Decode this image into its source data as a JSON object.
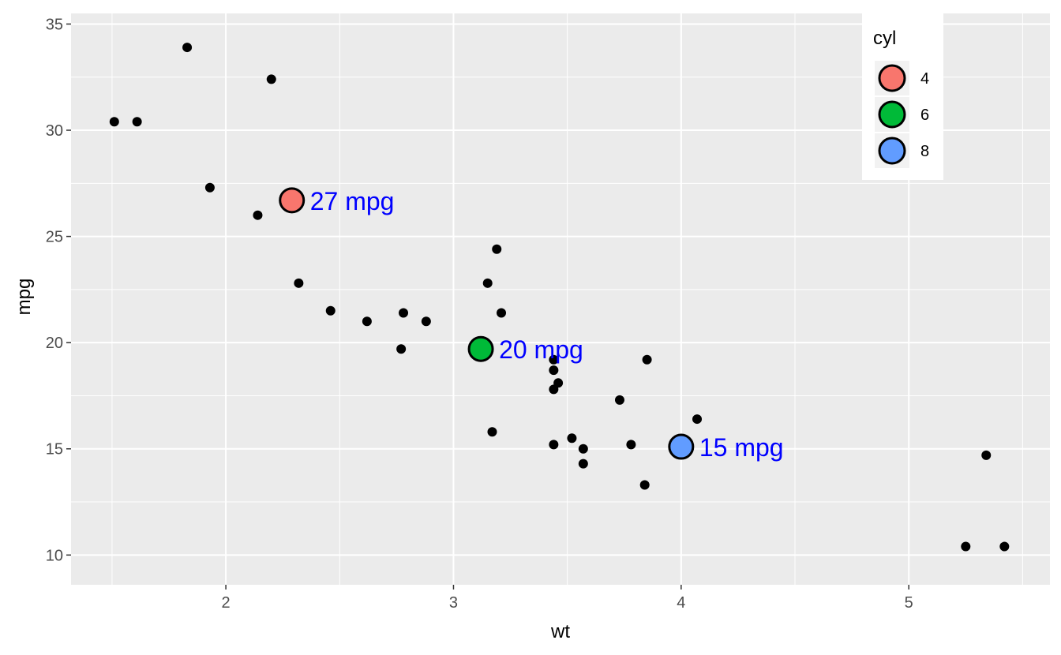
{
  "chart_data": {
    "type": "scatter",
    "xlabel": "wt",
    "ylabel": "mpg",
    "xlim": [
      1.32,
      5.62
    ],
    "ylim": [
      8.6,
      35.5
    ],
    "x_ticks": [
      2,
      3,
      4,
      5
    ],
    "y_ticks": [
      10,
      15,
      20,
      25,
      30,
      35
    ],
    "grid": true,
    "legend_position": "top-right",
    "points": [
      {
        "x": 1.51,
        "y": 30.4
      },
      {
        "x": 1.61,
        "y": 30.4
      },
      {
        "x": 1.83,
        "y": 33.9
      },
      {
        "x": 1.93,
        "y": 27.3
      },
      {
        "x": 2.14,
        "y": 26.0
      },
      {
        "x": 2.2,
        "y": 32.4
      },
      {
        "x": 2.32,
        "y": 22.8
      },
      {
        "x": 2.46,
        "y": 21.5
      },
      {
        "x": 2.62,
        "y": 21.0
      },
      {
        "x": 2.77,
        "y": 19.7
      },
      {
        "x": 2.78,
        "y": 21.4
      },
      {
        "x": 2.88,
        "y": 21.0
      },
      {
        "x": 3.15,
        "y": 22.8
      },
      {
        "x": 3.17,
        "y": 15.8
      },
      {
        "x": 3.19,
        "y": 24.4
      },
      {
        "x": 3.21,
        "y": 21.4
      },
      {
        "x": 3.44,
        "y": 18.7
      },
      {
        "x": 3.44,
        "y": 19.2
      },
      {
        "x": 3.44,
        "y": 17.8
      },
      {
        "x": 3.44,
        "y": 15.2
      },
      {
        "x": 3.46,
        "y": 18.1
      },
      {
        "x": 3.52,
        "y": 15.5
      },
      {
        "x": 3.57,
        "y": 15.0
      },
      {
        "x": 3.57,
        "y": 14.3
      },
      {
        "x": 3.73,
        "y": 17.3
      },
      {
        "x": 3.78,
        "y": 15.2
      },
      {
        "x": 3.84,
        "y": 13.3
      },
      {
        "x": 3.85,
        "y": 19.2
      },
      {
        "x": 4.07,
        "y": 16.4
      },
      {
        "x": 5.25,
        "y": 10.4
      },
      {
        "x": 5.34,
        "y": 14.7
      },
      {
        "x": 5.42,
        "y": 10.4
      }
    ],
    "highlighted_points": [
      {
        "cyl": "4",
        "x": 2.29,
        "y": 26.7,
        "label": "27 mpg",
        "color": "#F8766D"
      },
      {
        "cyl": "6",
        "x": 3.12,
        "y": 19.7,
        "label": "20 mpg",
        "color": "#00BA38"
      },
      {
        "cyl": "8",
        "x": 4.0,
        "y": 15.1,
        "label": "15 mpg",
        "color": "#619CFF"
      }
    ],
    "legend": {
      "title": "cyl",
      "entries": [
        {
          "label": "4",
          "color": "#F8766D"
        },
        {
          "label": "6",
          "color": "#00BA38"
        },
        {
          "label": "8",
          "color": "#619CFF"
        }
      ]
    }
  },
  "colors": {
    "panel_background": "#EBEBEB",
    "grid_line": "#FFFFFF",
    "point": "#000000",
    "annotation_text": "#0000FF"
  }
}
